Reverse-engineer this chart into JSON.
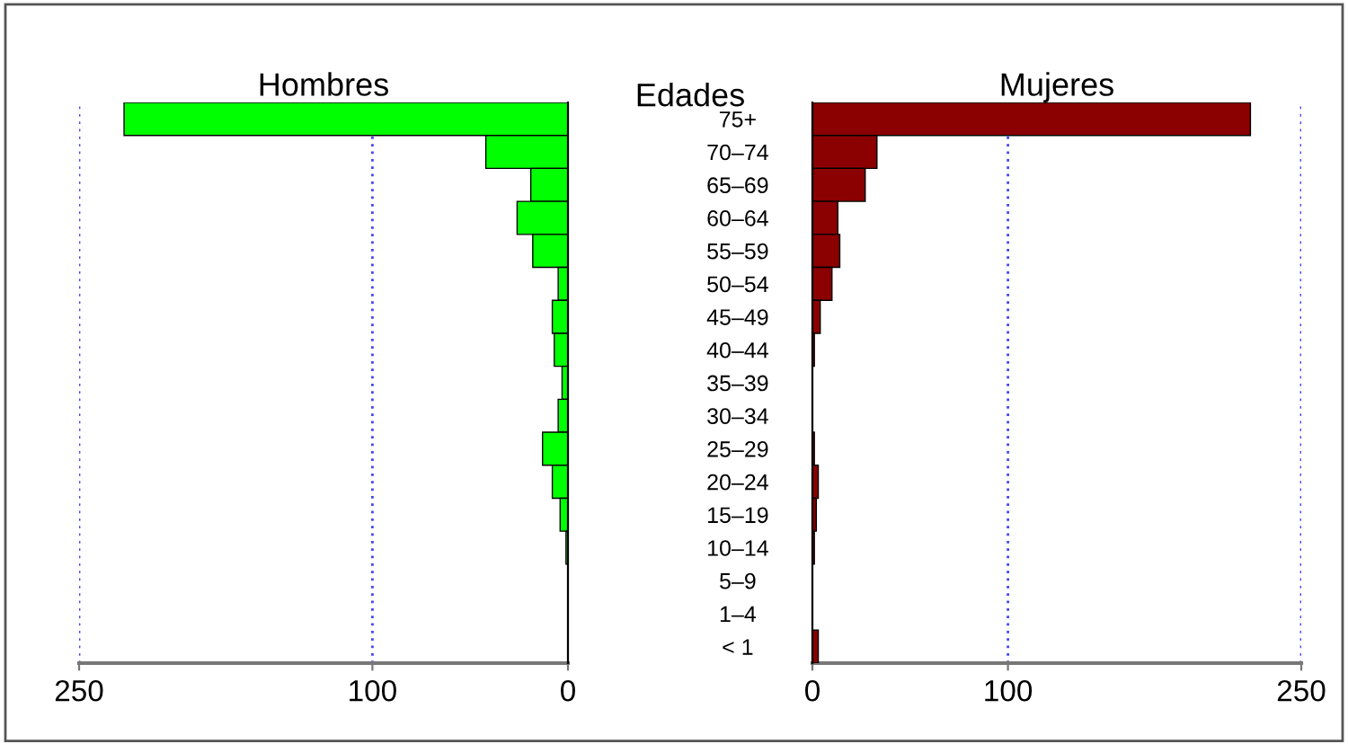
{
  "chart_data": [
    {
      "type": "bar",
      "orientation": "horizontal",
      "title": "Hombres",
      "ylabel": "Edades",
      "categories": [
        "75+",
        "70–74",
        "65–69",
        "60–64",
        "55–59",
        "50–54",
        "45–49",
        "40–44",
        "35–39",
        "30–34",
        "25–29",
        "20–24",
        "15–19",
        "10–14",
        "5–9",
        "1–4",
        "< 1"
      ],
      "values": [
        227,
        42,
        19,
        26,
        18,
        5,
        8,
        7,
        3,
        5,
        13,
        8,
        4,
        1,
        0,
        0,
        0
      ],
      "color": "#00ff00",
      "xlim": [
        250,
        0
      ],
      "xticks": [
        0,
        100,
        250
      ],
      "ref_lines": [
        {
          "axis": "x",
          "value": 100,
          "color": "#4444ff",
          "line_style": "dotted"
        },
        {
          "axis": "x",
          "value": 250,
          "color": "#4444ff",
          "line_style": "dotted"
        }
      ]
    },
    {
      "type": "bar",
      "orientation": "horizontal",
      "title": "Mujeres",
      "categories": [
        null,
        null,
        null,
        null,
        null,
        null,
        null,
        null,
        null,
        null,
        null,
        null,
        null,
        null,
        null,
        null,
        null
      ],
      "values": [
        224,
        33,
        27,
        13,
        14,
        10,
        4,
        1,
        0,
        0,
        1,
        3,
        2,
        1,
        0,
        0,
        3
      ],
      "color": "#8b0000",
      "xlim": [
        0,
        250
      ],
      "xticks": [
        0,
        100,
        250
      ],
      "tick_labels": "x",
      "ref_lines": [
        {
          "axis": "x",
          "value": 100,
          "color": "#4444ff",
          "line_style": "dotted"
        },
        {
          "axis": "x",
          "value": 250,
          "color": "#4444ff",
          "line_style": "dotted"
        }
      ]
    }
  ]
}
